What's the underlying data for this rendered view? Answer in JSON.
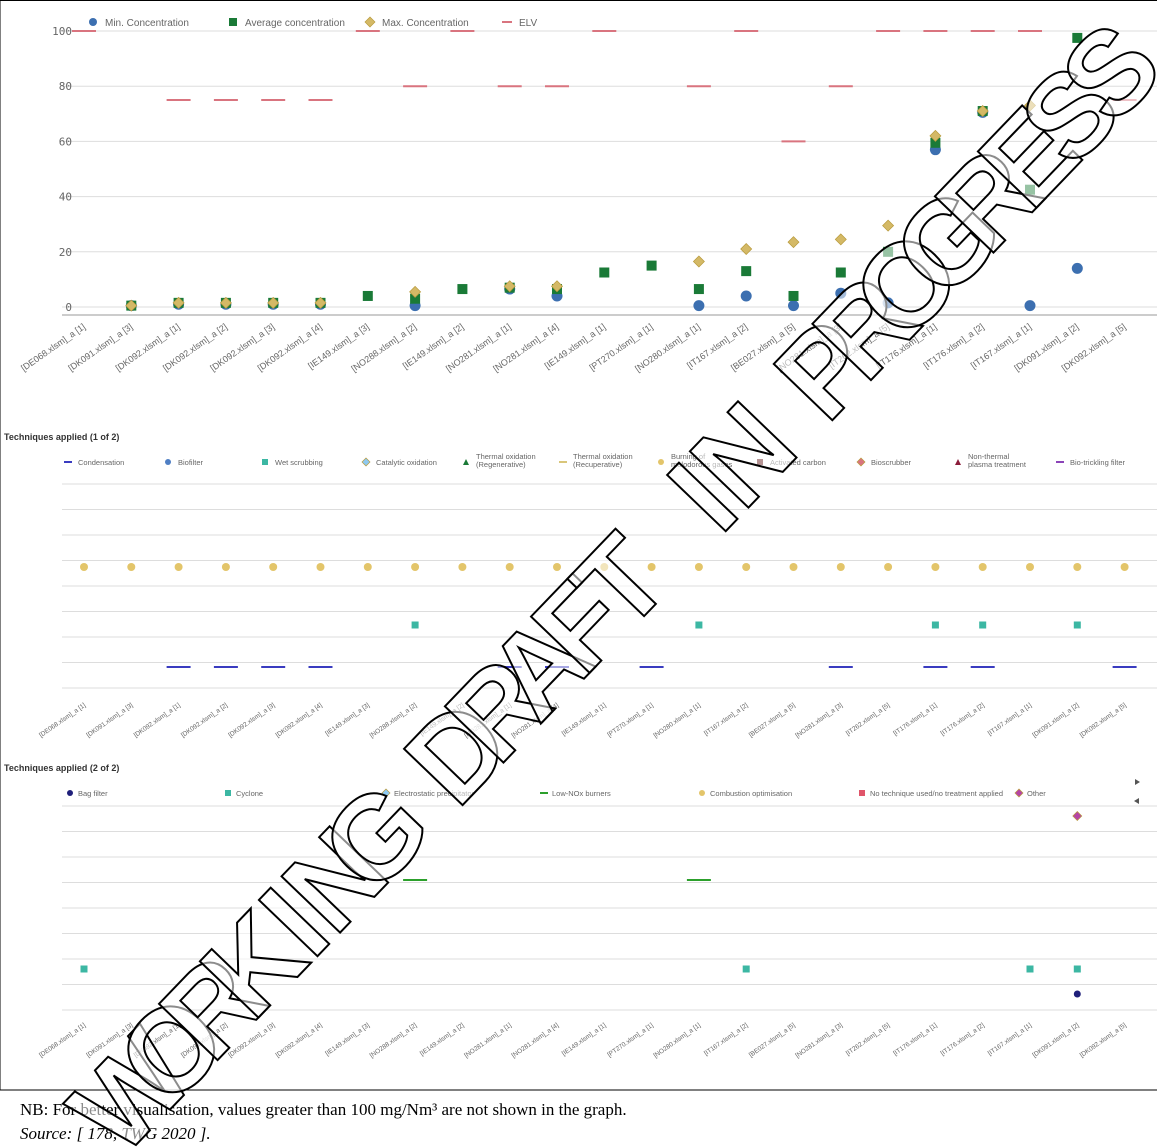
{
  "colors": {
    "min": "#3c6fb0",
    "avg": "#1a7a37",
    "max": "#d4b966",
    "elv": "#d9747f",
    "grid": "#dddddd",
    "axis_text": "#666666",
    "condensation": "#3a3cc0",
    "biofilter": "#4f7fc4",
    "wet_scrubbing": "#3cb7a3",
    "catalytic_oxidation": "#8ec9f0",
    "thermal_regen": "#1a7a37",
    "thermal_recup": "#d9c67a",
    "burning": "#e3c56a",
    "activated_carbon": "#5a1010",
    "bioscrubber": "#d9747f",
    "non_thermal_plasma": "#8b1d3a",
    "bio_trickling": "#8b44b8",
    "bag_filter": "#1f1f7a",
    "cyclone": "#3cb7a3",
    "esp": "#8ec9f0",
    "low_nox": "#2ca02c",
    "combustion_opt": "#e3c56a",
    "no_technique": "#e0556a",
    "other": "#b545a5"
  },
  "chart_data": [
    {
      "type": "scatter",
      "title": "",
      "xlabel": "",
      "ylabel": "",
      "ylim": [
        0,
        100
      ],
      "yticks": [
        0,
        20,
        40,
        60,
        80,
        100
      ],
      "grid": true,
      "legend_position": "top-left",
      "categories": [
        "[DE068.xlsm]_a [1]",
        "[DK091.xlsm]_a [3]",
        "[DK092.xlsm]_a [1]",
        "[DK092.xlsm]_a [2]",
        "[DK092.xlsm]_a [3]",
        "[DK092.xlsm]_a [4]",
        "[IE149.xlsm]_a [3]",
        "[NO288.xlsm]_a [2]",
        "[IE149.xlsm]_a [2]",
        "[NO281.xlsm]_a [1]",
        "[NO281.xlsm]_a [4]",
        "[IE149.xlsm]_a [1]",
        "[PT270.xlsm]_a [1]",
        "[NO280.xlsm]_a [1]",
        "[IT167.xlsm]_a [2]",
        "[BE027.xlsm]_a [5]",
        "[NO281.xlsm]_a [3]",
        "[IT262.xlsm]_a [5]",
        "[IT176.xlsm]_a [1]",
        "[IT176.xlsm]_a [2]",
        "[IT167.xlsm]_a [1]",
        "[DK091.xlsm]_a [2]",
        "[DK092.xlsm]_a [5]"
      ],
      "series": [
        {
          "name": "Min. Concentration",
          "marker": "circle",
          "values": [
            null,
            0.5,
            1,
            1,
            1,
            1,
            null,
            0.5,
            null,
            6.5,
            4,
            null,
            null,
            0.5,
            4,
            0.5,
            5,
            1.5,
            57,
            70.5,
            0.5,
            14,
            null
          ]
        },
        {
          "name": "Average concentration",
          "marker": "square",
          "values": [
            null,
            0.5,
            1.5,
            1.5,
            1.5,
            1.5,
            4,
            3,
            6.5,
            7,
            6.5,
            12.5,
            15,
            6.5,
            13,
            4,
            12.5,
            20,
            59.5,
            71,
            42.5,
            97.5,
            null
          ]
        },
        {
          "name": "Max. Concentration",
          "marker": "diamond",
          "values": [
            null,
            0.5,
            1.5,
            1.5,
            1.5,
            1.5,
            null,
            5.5,
            null,
            7.5,
            7.5,
            null,
            null,
            16.5,
            21,
            23.5,
            24.5,
            29.5,
            62,
            71,
            73,
            null,
            null
          ]
        },
        {
          "name": "ELV",
          "marker": "dash",
          "values": [
            100,
            null,
            75,
            75,
            75,
            75,
            100,
            80,
            100,
            80,
            80,
            100,
            null,
            80,
            100,
            60,
            80,
            100,
            100,
            100,
            100,
            null,
            75
          ]
        }
      ]
    },
    {
      "type": "scatter",
      "title": "Techniques applied (1 of 2)",
      "grid": true,
      "categories": [
        "[DE068.xlsm]_a [1]",
        "[DK091.xlsm]_a [3]",
        "[DK092.xlsm]_a [1]",
        "[DK092.xlsm]_a [2]",
        "[DK092.xlsm]_a [3]",
        "[DK092.xlsm]_a [4]",
        "[IE149.xlsm]_a [3]",
        "[NO288.xlsm]_a [2]",
        "[IE149.xlsm]_a [2]",
        "[NO281.xlsm]_a [1]",
        "[NO281.xlsm]_a [4]",
        "[IE149.xlsm]_a [1]",
        "[PT270.xlsm]_a [1]",
        "[NO280.xlsm]_a [1]",
        "[IT167.xlsm]_a [2]",
        "[BE027.xlsm]_a [5]",
        "[NO281.xlsm]_a [3]",
        "[IT262.xlsm]_a [5]",
        "[IT176.xlsm]_a [1]",
        "[IT176.xlsm]_a [2]",
        "[IT167.xlsm]_a [1]",
        "[DK091.xlsm]_a [2]",
        "[DK092.xlsm]_a [5]"
      ],
      "legend": [
        "Condensation",
        "Biofilter",
        "Wet scrubbing",
        "Catalytic oxidation",
        "Thermal oxidation (Regenerative)",
        "Thermal oxidation (Recuperative)",
        "Burning of malodorous gases",
        "Activated carbon",
        "Bioscrubber",
        "Non-thermal plasma treatment",
        "Bio-trickling filter"
      ],
      "series": [
        {
          "name": "Burning of malodorous gases",
          "marker": "circle",
          "row": 2,
          "indices": [
            0,
            1,
            2,
            3,
            4,
            5,
            6,
            7,
            8,
            9,
            10,
            11,
            12,
            13,
            14,
            15,
            16,
            17,
            18,
            19,
            20,
            21,
            22
          ]
        },
        {
          "name": "Wet scrubbing",
          "marker": "square",
          "row": 4,
          "indices": [
            7,
            13,
            18,
            19,
            21
          ]
        },
        {
          "name": "Condensation",
          "marker": "dash",
          "row": 5,
          "indices": [
            2,
            3,
            4,
            5,
            9,
            10,
            12,
            16,
            18,
            19,
            22
          ]
        }
      ]
    },
    {
      "type": "scatter",
      "title": "Techniques applied (2 of 2)",
      "grid": true,
      "categories": [
        "[DE068.xlsm]_a [1]",
        "[DK091.xlsm]_a [3]",
        "[DK092.xlsm]_a [1]",
        "[DK092.xlsm]_a [2]",
        "[DK092.xlsm]_a [3]",
        "[DK092.xlsm]_a [4]",
        "[IE149.xlsm]_a [3]",
        "[NO288.xlsm]_a [2]",
        "[IE149.xlsm]_a [2]",
        "[NO281.xlsm]_a [1]",
        "[NO281.xlsm]_a [4]",
        "[IE149.xlsm]_a [1]",
        "[PT270.xlsm]_a [1]",
        "[NO280.xlsm]_a [1]",
        "[IT167.xlsm]_a [2]",
        "[BE027.xlsm]_a [5]",
        "[NO281.xlsm]_a [3]",
        "[IT262.xlsm]_a [5]",
        "[IT176.xlsm]_a [1]",
        "[IT176.xlsm]_a [2]",
        "[IT167.xlsm]_a [1]",
        "[DK091.xlsm]_a [2]",
        "[DK092.xlsm]_a [5]"
      ],
      "legend": [
        "Bag filter",
        "Cyclone",
        "Electrostatic precipitator",
        "Low-NOx burners",
        "Combustion optimisation",
        "No technique used/no treatment applied",
        "Other"
      ],
      "series": [
        {
          "name": "Other",
          "marker": "diamond",
          "row": 0,
          "indices": [
            21
          ]
        },
        {
          "name": "Low-NOx burners",
          "marker": "dash",
          "row": 2,
          "indices": [
            7,
            13
          ]
        },
        {
          "name": "Cyclone",
          "marker": "square",
          "row": 6,
          "indices": [
            0,
            14,
            20,
            21
          ]
        },
        {
          "name": "Bag filter",
          "marker": "circle",
          "row": 7,
          "indices": [
            21
          ]
        }
      ]
    }
  ],
  "notes": {
    "nb": "NB: For better visualisation, values greater than 100 mg/Nm³ are not shown in the graph.",
    "source": "Source: [ 178, TWG 2020 ]."
  },
  "watermark": "WORKING DRAFT IN PROGRESS"
}
